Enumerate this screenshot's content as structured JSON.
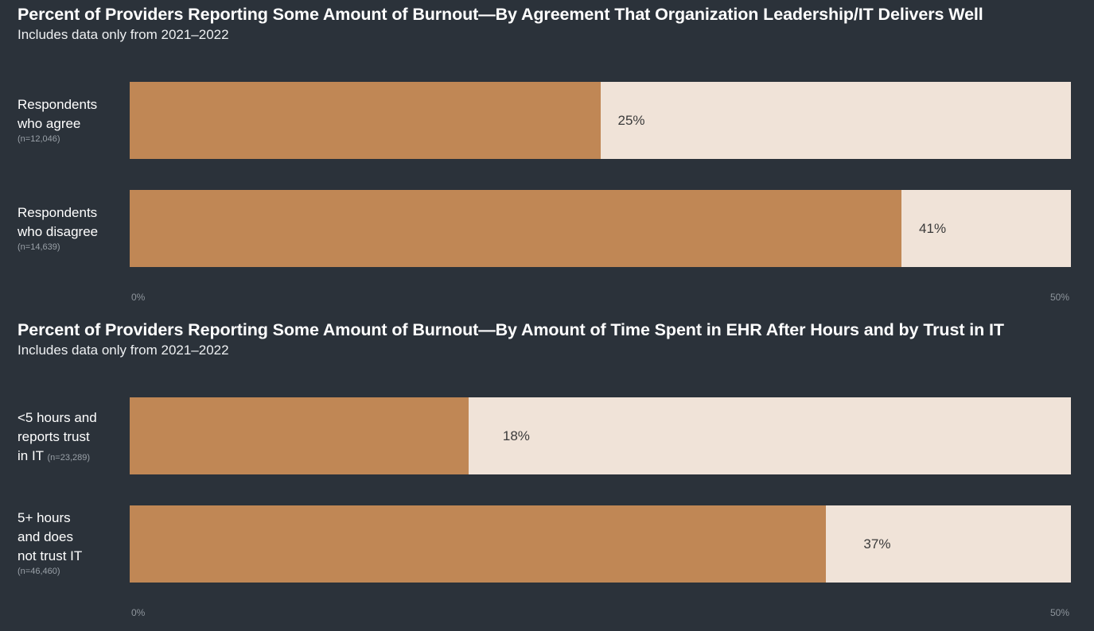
{
  "colors": {
    "background": "#2b323a",
    "fill": "#c08755",
    "track": "#f0e3d8"
  },
  "chart_data": [
    {
      "type": "bar",
      "orientation": "horizontal",
      "title": "Percent of Providers Reporting Some Amount of Burnout—By Agreement That Organization Leadership/IT Delivers Well",
      "subtitle": "Includes data only from 2021–2022",
      "xlim": [
        0,
        50
      ],
      "ticks": [
        "0%",
        "50%"
      ],
      "categories": [
        {
          "line1": "Respondents",
          "line2": "who agree",
          "n": "(n=12,046)"
        },
        {
          "line1": "Respondents",
          "line2": "who disagree",
          "n": "(n=14,639)"
        }
      ],
      "values": [
        25,
        41
      ],
      "value_labels": [
        "25%",
        "41%"
      ]
    },
    {
      "type": "bar",
      "orientation": "horizontal",
      "title": "Percent of Providers Reporting Some Amount of Burnout—By Amount of Time Spent in EHR After Hours and by Trust in IT",
      "subtitle": "Includes data only from 2021–2022",
      "xlim": [
        0,
        50
      ],
      "ticks": [
        "0%",
        "50%"
      ],
      "categories": [
        {
          "line1": "<5 hours and",
          "line2": "reports trust",
          "line3": "in IT",
          "n": "(n=23,289)"
        },
        {
          "line1": "5+ hours",
          "line2": "and does",
          "line3": "not trust IT",
          "n": "(n=46,460)"
        }
      ],
      "values": [
        18,
        37
      ],
      "value_labels": [
        "18%",
        "37%"
      ]
    }
  ]
}
